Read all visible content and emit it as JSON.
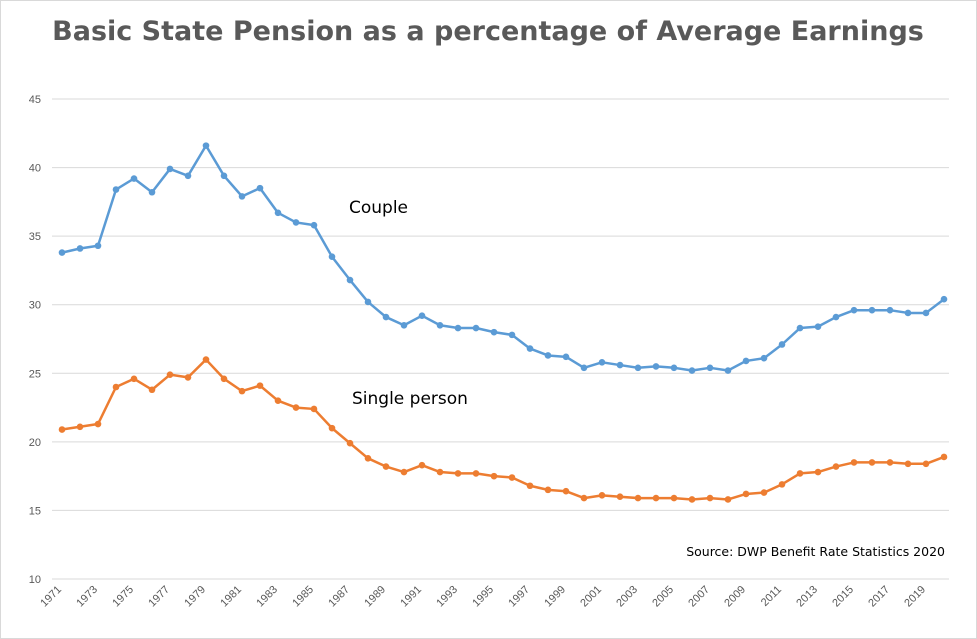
{
  "chart_data": {
    "type": "line",
    "title": "Basic State Pension as a percentage of Average Earnings",
    "xlabel": "",
    "ylabel": "",
    "ylim": [
      10,
      45
    ],
    "yticks": [
      "10",
      "15",
      "20",
      "25",
      "30",
      "35",
      "40",
      "45"
    ],
    "grid": true,
    "x": [
      1971,
      1972,
      1973,
      1974,
      1975,
      1976,
      1977,
      1978,
      1979,
      1980,
      1981,
      1982,
      1983,
      1984,
      1985,
      1986,
      1987,
      1988,
      1989,
      1990,
      1991,
      1992,
      1993,
      1994,
      1995,
      1996,
      1997,
      1998,
      1999,
      2000,
      2001,
      2002,
      2003,
      2004,
      2005,
      2006,
      2007,
      2008,
      2009,
      2010,
      2011,
      2012,
      2013,
      2014,
      2015,
      2016,
      2017,
      2018,
      2019,
      2020
    ],
    "xtick_labels": [
      "1971",
      "1973",
      "1975",
      "1977",
      "1979",
      "1981",
      "1983",
      "1985",
      "1987",
      "1989",
      "1991",
      "1993",
      "1995",
      "1997",
      "1999",
      "2001",
      "2003",
      "2005",
      "2007",
      "2009",
      "2011",
      "2013",
      "2015",
      "2017",
      "2019"
    ],
    "series": [
      {
        "name": "Couple",
        "color": "#5b9bd5",
        "values": [
          33.8,
          34.1,
          34.3,
          38.4,
          39.2,
          38.2,
          39.9,
          39.4,
          41.6,
          39.4,
          37.9,
          38.5,
          36.7,
          36.0,
          35.8,
          33.5,
          31.8,
          30.2,
          29.1,
          28.5,
          29.2,
          28.5,
          28.3,
          28.3,
          28.0,
          27.8,
          26.8,
          26.3,
          26.2,
          25.4,
          25.8,
          25.6,
          25.4,
          25.5,
          25.4,
          25.2,
          25.4,
          25.2,
          25.9,
          26.1,
          27.1,
          28.3,
          28.4,
          29.1,
          29.6,
          29.6,
          29.6,
          29.4,
          29.4,
          30.4
        ]
      },
      {
        "name": "Single person",
        "color": "#ed7d31",
        "values": [
          20.9,
          21.1,
          21.3,
          24.0,
          24.6,
          23.8,
          24.9,
          24.7,
          26.0,
          24.6,
          23.7,
          24.1,
          23.0,
          22.5,
          22.4,
          21.0,
          19.9,
          18.8,
          18.2,
          17.8,
          18.3,
          17.8,
          17.7,
          17.7,
          17.5,
          17.4,
          16.8,
          16.5,
          16.4,
          15.9,
          16.1,
          16.0,
          15.9,
          15.9,
          15.9,
          15.8,
          15.9,
          15.8,
          16.2,
          16.3,
          16.9,
          17.7,
          17.8,
          18.2,
          18.5,
          18.5,
          18.5,
          18.4,
          18.4,
          18.9
        ]
      }
    ],
    "annotations": {
      "couple_label": "Couple",
      "single_label": "Single person",
      "source": "Source: DWP Benefit Rate Statistics 2020"
    }
  }
}
